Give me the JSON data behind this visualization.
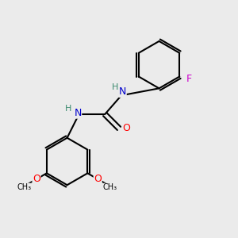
{
  "bg_color": "#ebebeb",
  "bond_color": "#000000",
  "bond_width": 1.5,
  "atom_colors": {
    "C": "#000000",
    "N": "#0000cc",
    "O": "#ff0000",
    "F": "#cc00cc",
    "H": "#3a8a6e"
  },
  "font_size": 9,
  "font_size_small": 8
}
